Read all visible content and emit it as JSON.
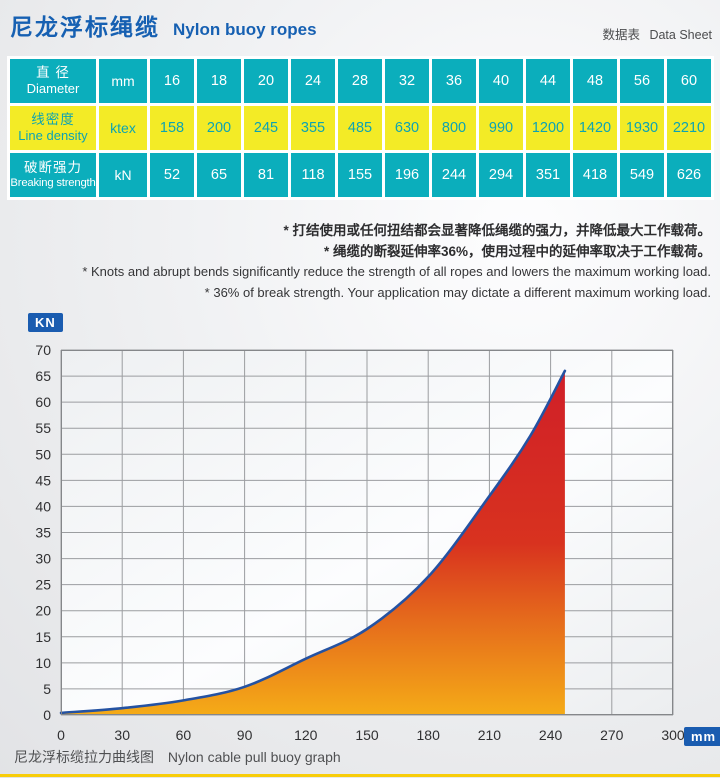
{
  "header": {
    "title_zh": "尼龙浮标绳缆",
    "title_en": "Nylon buoy ropes",
    "sheet_zh": "数据表",
    "sheet_en": "Data Sheet"
  },
  "table": {
    "rows": [
      {
        "style": "teal",
        "label_zh": "直 径",
        "label_en": "Diameter",
        "unit": "mm",
        "values": [
          "16",
          "18",
          "20",
          "24",
          "28",
          "32",
          "36",
          "40",
          "44",
          "48",
          "56",
          "60"
        ]
      },
      {
        "style": "yellow",
        "label_zh": "线密度",
        "label_en": "Line density",
        "unit": "ktex",
        "values": [
          "158",
          "200",
          "245",
          "355",
          "485",
          "630",
          "800",
          "990",
          "1200",
          "1420",
          "1930",
          "2210"
        ]
      },
      {
        "style": "teal",
        "label_zh": "破断强力",
        "label_en": "Breaking strength",
        "unit": "kN",
        "values": [
          "52",
          "65",
          "81",
          "118",
          "155",
          "196",
          "244",
          "294",
          "351",
          "418",
          "549",
          "626"
        ]
      }
    ]
  },
  "notes": [
    {
      "lang": "zh",
      "text": "* 打结使用或任何扭结都会显著降低绳缆的强力，并降低最大工作载荷。"
    },
    {
      "lang": "zh",
      "text": "* 绳缆的断裂延伸率36%，使用过程中的延伸率取决于工作载荷。"
    },
    {
      "lang": "en",
      "text": "* Knots and abrupt bends significantly reduce the strength of all ropes and lowers the maximum working load."
    },
    {
      "lang": "en",
      "text": "* 36% of break strength. Your application may dictate a different maximum working load."
    }
  ],
  "chart_data": {
    "type": "area",
    "title_zh": "尼龙浮标缆拉力曲线图",
    "title_en": "Nylon cable pull buoy graph",
    "ylabel": "KN",
    "xlabel": "mm",
    "xlim": [
      0,
      300
    ],
    "ylim": [
      0,
      70
    ],
    "x_ticks": [
      0,
      30,
      60,
      90,
      120,
      150,
      180,
      210,
      240,
      270,
      300
    ],
    "y_ticks": [
      0,
      5,
      10,
      15,
      20,
      25,
      30,
      35,
      40,
      45,
      50,
      55,
      60,
      65,
      70
    ],
    "grid": true,
    "legend": false,
    "series": [
      {
        "name": "pull-force-curve",
        "points": [
          [
            0,
            0.4
          ],
          [
            30,
            1.3
          ],
          [
            60,
            2.8
          ],
          [
            90,
            5.4
          ],
          [
            120,
            10.8
          ],
          [
            150,
            16.5
          ],
          [
            180,
            26.5
          ],
          [
            210,
            42
          ],
          [
            230,
            53.5
          ],
          [
            247,
            66
          ]
        ]
      }
    ]
  },
  "colors": {
    "title-blue": "#1660b2",
    "badge-blue": "#1a5cb0",
    "teal": "#0baebc",
    "yellow": "#f3eb26",
    "teal-text": "#0da3b2",
    "curve-blue": "#2452a2",
    "grid": "#9b9da0",
    "border": "#85878a",
    "fill-top": "#d01f28",
    "fill-mid": "#d8321f",
    "fill-orange": "#e56a1c",
    "fill-bottom": "#f5ab17",
    "bottom-bar": "#f8cd0a"
  }
}
